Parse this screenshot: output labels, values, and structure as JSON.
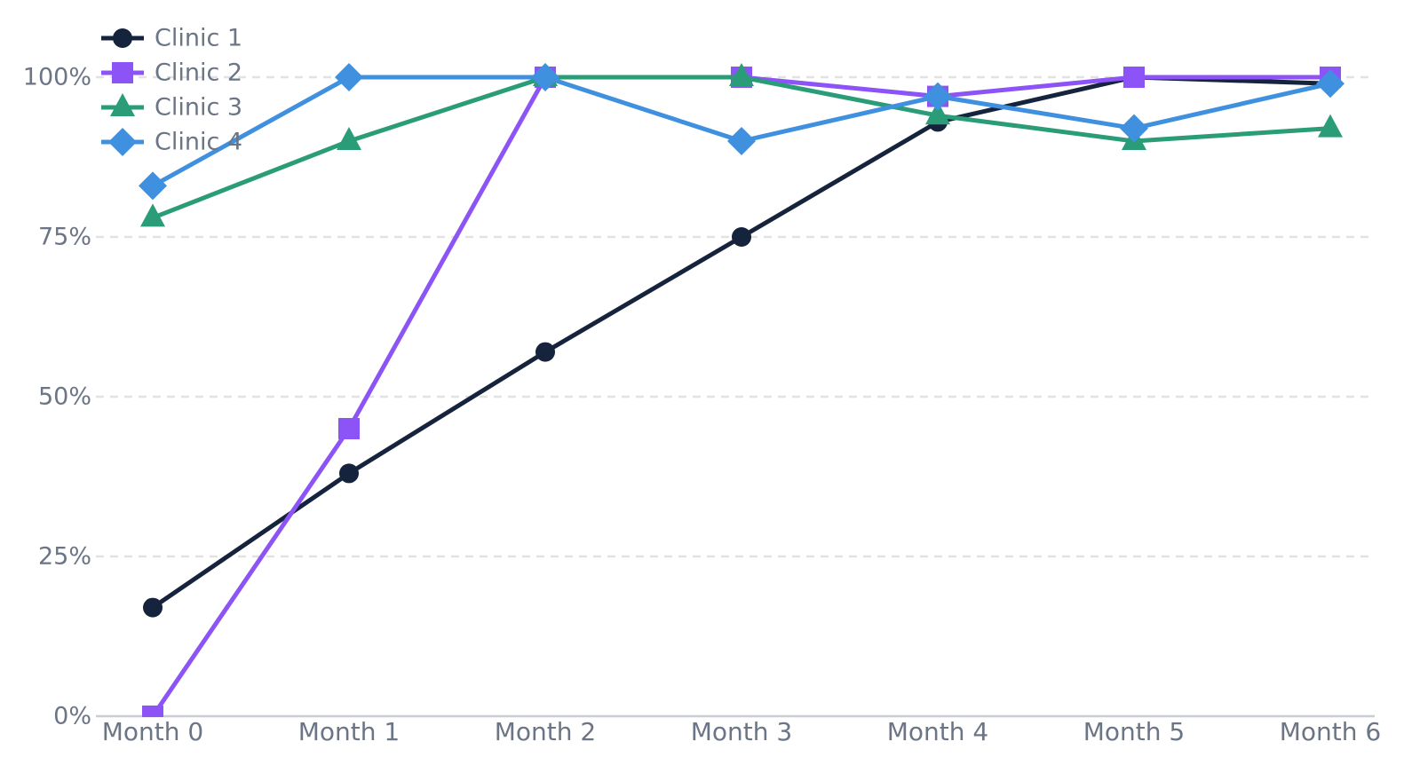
{
  "chart_data": {
    "type": "line",
    "categories": [
      "Month 0",
      "Month 1",
      "Month 2",
      "Month 3",
      "Month 4",
      "Month 5",
      "Month 6"
    ],
    "series": [
      {
        "name": "Clinic 1",
        "marker": "circle",
        "color": "#16233c",
        "values": [
          17,
          38,
          57,
          75,
          93,
          100,
          99
        ]
      },
      {
        "name": "Clinic 2",
        "marker": "square",
        "color": "#8c53f6",
        "values": [
          0,
          45,
          100,
          100,
          97,
          100,
          100
        ]
      },
      {
        "name": "Clinic 3",
        "marker": "triangle",
        "color": "#2a9d78",
        "values": [
          78,
          90,
          100,
          100,
          94,
          90,
          92
        ]
      },
      {
        "name": "Clinic 4",
        "marker": "diamond",
        "color": "#4090e0",
        "values": [
          83,
          100,
          100,
          90,
          97,
          92,
          99
        ]
      }
    ],
    "yticks": [
      {
        "value": 0,
        "label": "0%"
      },
      {
        "value": 25,
        "label": "25%"
      },
      {
        "value": 50,
        "label": "50%"
      },
      {
        "value": 75,
        "label": "75%"
      },
      {
        "value": 100,
        "label": "100%"
      }
    ],
    "ylim": [
      0,
      100
    ],
    "xlabel": "",
    "ylabel": "",
    "title": "",
    "grid": "horizontal-dashed",
    "legend_position": "top-left",
    "colors": {
      "tick_label": "#6b7585",
      "legend_label": "#6b7585",
      "grid_line": "#e2e2e2",
      "axis_line": "#c9ced6",
      "background": "#ffffff"
    }
  }
}
